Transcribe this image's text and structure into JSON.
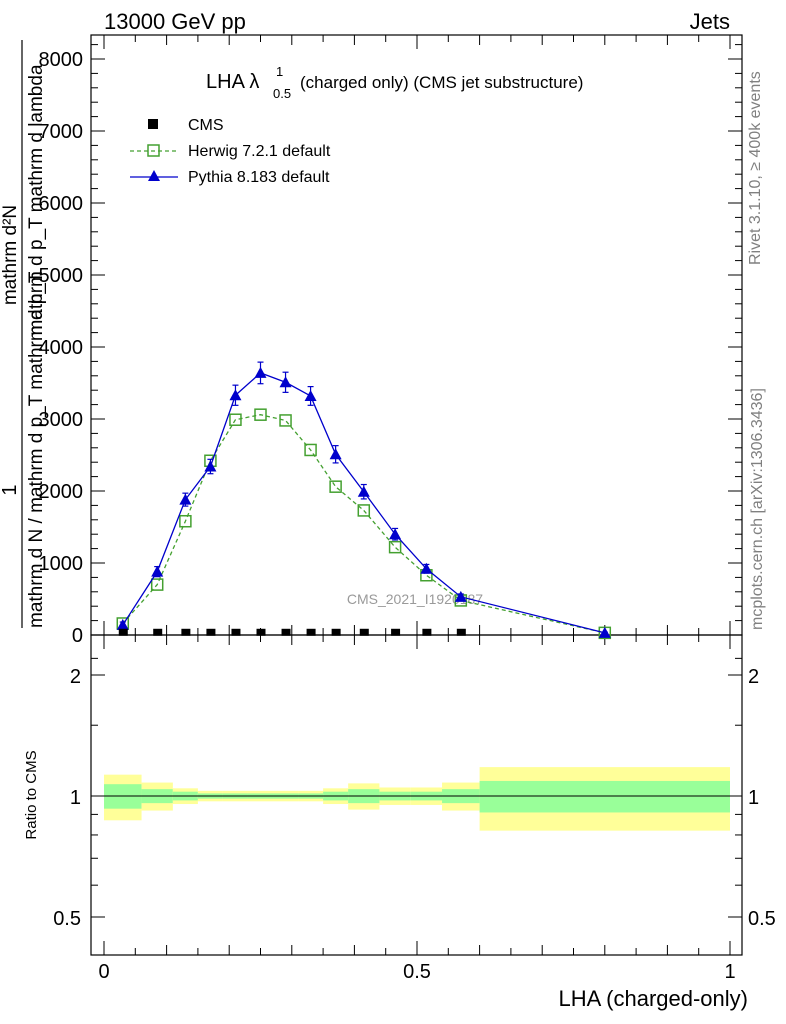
{
  "header": {
    "left": "13000 GeV pp",
    "right": "Jets"
  },
  "side_text": {
    "rivet": "Rivet 3.1.10, ≥ 400k events",
    "mcplots": "mcplots.cern.ch [arXiv:1306.3436]"
  },
  "chart_data": {
    "type": "line",
    "title": "LHA λ",
    "title_sup": "1",
    "title_sub": "0.5",
    "title_rest": "(charged only) (CMS jet substructure)",
    "watermark": "CMS_2021_I1920187",
    "xlabel": "LHA (charged-only)",
    "ylabel_main_num": "1",
    "ylabel_main_den": "mathrm d N / mathrm d p_T mathrm d p_T",
    "ylabel_main_num_right": "mathrm d²N",
    "ylabel_main_den_right": "mathrm d p_T mathrm d lambda",
    "ylabel_ratio": "Ratio to CMS",
    "xlim": [
      0,
      1
    ],
    "ylim": [
      0,
      8300
    ],
    "ratio_ylim": [
      0.4,
      2.3
    ],
    "x_ticks": [
      "0",
      "0.5",
      "1"
    ],
    "y_ticks": [
      "0",
      "1000",
      "2000",
      "3000",
      "4000",
      "5000",
      "6000",
      "7000",
      "8000"
    ],
    "ratio_ticks": [
      "0.5",
      "1",
      "2"
    ],
    "legend": [
      {
        "name": "CMS",
        "color": "#000000"
      },
      {
        "name": "Herwig 7.2.1 default",
        "color": "#44a030"
      },
      {
        "name": "Pythia 8.183 default",
        "color": "#0000cc"
      }
    ],
    "series": [
      {
        "name": "CMS",
        "x": [
          0.03,
          0.085,
          0.13,
          0.17,
          0.21,
          0.25,
          0.29,
          0.33,
          0.37,
          0.415,
          0.465,
          0.515,
          0.57
        ],
        "values": [
          3,
          3,
          3,
          3,
          3,
          3,
          3,
          3,
          3,
          3,
          3,
          3,
          3
        ]
      },
      {
        "name": "Herwig 7.2.1 default",
        "x": [
          0.03,
          0.085,
          0.13,
          0.17,
          0.21,
          0.25,
          0.29,
          0.33,
          0.37,
          0.415,
          0.465,
          0.515,
          0.57,
          0.8
        ],
        "values": [
          160,
          700,
          1580,
          2420,
          2990,
          3060,
          2980,
          2570,
          2060,
          1730,
          1220,
          830,
          480,
          30
        ]
      },
      {
        "name": "Pythia 8.183 default",
        "x": [
          0.03,
          0.085,
          0.13,
          0.17,
          0.21,
          0.25,
          0.29,
          0.33,
          0.37,
          0.415,
          0.465,
          0.515,
          0.57,
          0.8
        ],
        "values": [
          140,
          880,
          1880,
          2340,
          3330,
          3640,
          3510,
          3320,
          2510,
          1990,
          1400,
          920,
          530,
          30
        ],
        "errors": [
          40,
          70,
          90,
          100,
          140,
          150,
          140,
          130,
          120,
          100,
          80,
          60,
          40,
          10
        ]
      }
    ],
    "ratio_bands": {
      "edges": [
        0.0,
        0.06,
        0.11,
        0.15,
        0.19,
        0.23,
        0.27,
        0.31,
        0.35,
        0.39,
        0.44,
        0.49,
        0.54,
        0.6,
        1.0
      ],
      "inner": [
        0.07,
        0.04,
        0.025,
        0.015,
        0.015,
        0.015,
        0.015,
        0.015,
        0.025,
        0.04,
        0.025,
        0.025,
        0.04,
        0.09
      ],
      "outer": [
        0.13,
        0.08,
        0.045,
        0.03,
        0.03,
        0.03,
        0.03,
        0.03,
        0.045,
        0.075,
        0.05,
        0.05,
        0.08,
        0.18
      ]
    }
  }
}
